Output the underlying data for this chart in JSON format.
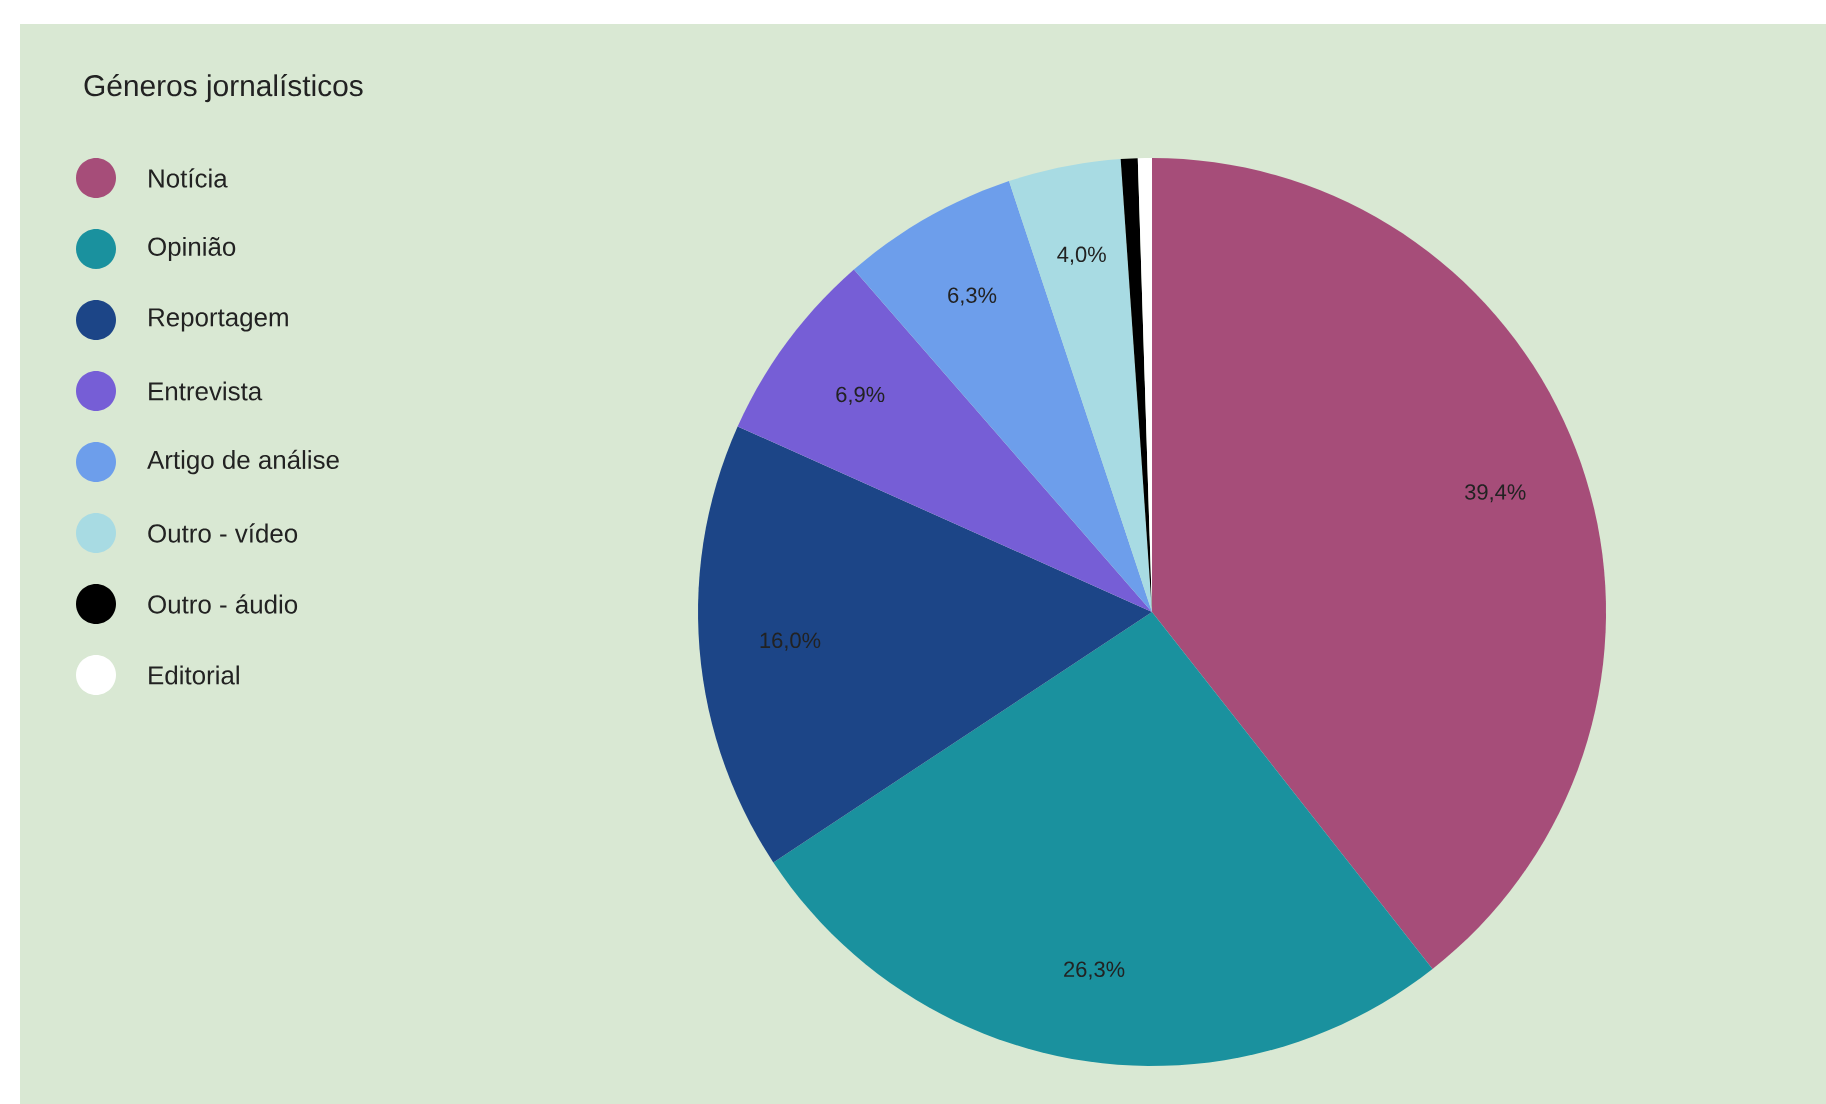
{
  "chart_data": {
    "type": "pie",
    "legend_title": "Géneros jornalísticos",
    "categories": [
      "Notícia",
      "Opinião",
      "Reportagem",
      "Entrevista",
      "Artigo de análise",
      "Outro - vídeo",
      "Outro - áudio",
      "Editorial"
    ],
    "values": [
      39.4,
      26.3,
      16.0,
      6.9,
      6.3,
      4.0,
      0.6,
      0.5
    ],
    "colors": [
      "#a64d79",
      "#1a919e",
      "#1c4587",
      "#765ed6",
      "#6d9eeb",
      "#a8dbe3",
      "#000000",
      "#ffffff"
    ],
    "value_labels": [
      "39,4%",
      "26,3%",
      "16,0%",
      "6,9%",
      "6,3%",
      "4,0%",
      null,
      null
    ],
    "legend": "top left"
  }
}
